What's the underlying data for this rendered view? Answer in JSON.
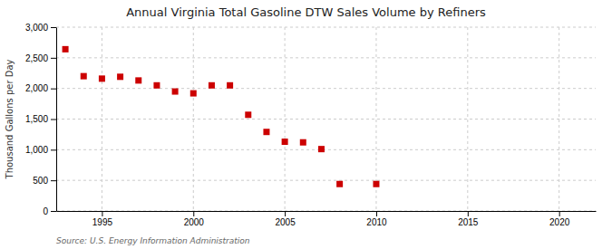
{
  "chart_data": {
    "type": "scatter",
    "title": "Annual Virginia Total Gasoline DTW Sales Volume by Refiners",
    "ylabel": "Thousand Gallons per Day",
    "annotations": [
      "Source: U.S. Energy Information Administration"
    ],
    "x": [
      1993,
      1994,
      1995,
      1996,
      1997,
      1998,
      1999,
      2000,
      2001,
      2002,
      2003,
      2004,
      2005,
      2006,
      2007,
      2008,
      2010
    ],
    "values": [
      2640,
      2200,
      2160,
      2190,
      2130,
      2050,
      1950,
      1920,
      2050,
      2050,
      1570,
      1290,
      1130,
      1120,
      1010,
      440,
      440
    ],
    "color": "#cc0000",
    "marker": "square",
    "xlim": [
      1992.5,
      2022
    ],
    "xticks": [
      1995,
      2000,
      2005,
      2010,
      2015,
      2020
    ],
    "ylim": [
      0,
      3000
    ],
    "yticks": [
      0,
      500,
      {
        "value": 1000,
        "label": "1,000"
      },
      {
        "value": 1500,
        "label": "1,500"
      },
      {
        "value": 2000,
        "label": "2,000"
      },
      {
        "value": 2500,
        "label": "2,500"
      },
      {
        "value": 3000,
        "label": "3,000"
      }
    ],
    "grid": true
  }
}
